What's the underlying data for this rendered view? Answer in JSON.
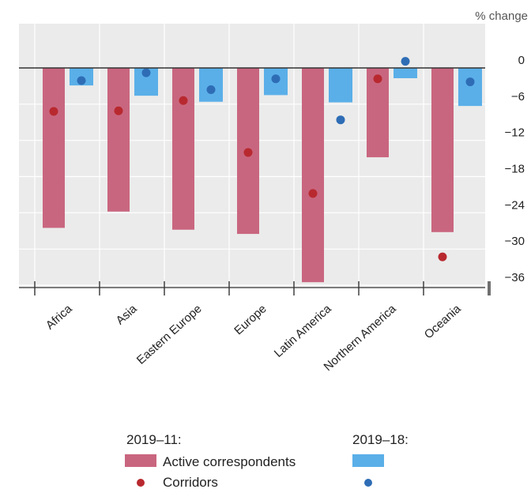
{
  "chart_data": {
    "type": "bar",
    "unit_label": "% change",
    "categories": [
      "Africa",
      "Asia",
      "Eastern Europe",
      "Europe",
      "Latin America",
      "Northern America",
      "Oceania"
    ],
    "ylim": [
      -36,
      0
    ],
    "yticks": [
      0,
      -6,
      -12,
      -18,
      -24,
      -30,
      -36
    ],
    "grid": true,
    "legend_position": "bottom",
    "series": [
      {
        "group": "2019–11:",
        "name": "Active correspondents",
        "kind": "bar",
        "color": "#c9667f",
        "values": [
          -26.5,
          -23.8,
          -26.8,
          -27.5,
          -35.5,
          -14.8,
          -27.2
        ]
      },
      {
        "group": "2019–18:",
        "kind": "bar",
        "color": "#5aafe8",
        "values": [
          -2.9,
          -4.6,
          -5.6,
          -4.5,
          -5.7,
          -1.7,
          -6.3
        ]
      },
      {
        "group": "2019–11:",
        "name": "Corridors",
        "kind": "dot",
        "color": "#b8292f",
        "values": [
          -7.2,
          -7.1,
          -5.4,
          -14.0,
          -20.8,
          -1.8,
          -31.3
        ]
      },
      {
        "group": "2019–18:",
        "kind": "dot",
        "color": "#2e6db5",
        "values": [
          -2.1,
          -0.8,
          -3.6,
          -1.8,
          -8.6,
          1.1,
          -2.3
        ]
      }
    ]
  }
}
